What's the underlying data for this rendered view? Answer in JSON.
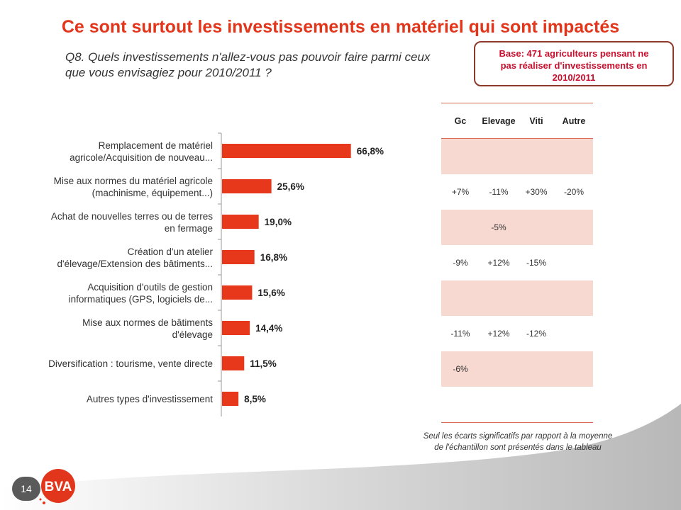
{
  "title": "Ce sont surtout les investissements en matériel qui sont impactés",
  "question": "Q8. Quels investissements n'allez-vous pas pouvoir faire parmi ceux que vous envisagiez pour 2010/2011 ?",
  "base_box": {
    "line1": "Base: 471 agriculteurs pensant ne",
    "line2": "pas réaliser d'investissements en",
    "line3": "2010/2011"
  },
  "colors": {
    "accent": "#e2361c",
    "bar": "#e8381b",
    "shade": "#f7d9d1",
    "border": "#8b3a2b"
  },
  "chart_data": {
    "type": "bar",
    "orientation": "horizontal",
    "categories": [
      [
        "Remplacement de matériel",
        "agricole/Acquisition de nouveau..."
      ],
      [
        "Mise aux normes du matériel agricole",
        "(machinisme, équipement...)"
      ],
      [
        "Achat de nouvelles terres ou de terres",
        "en fermage"
      ],
      [
        "Création d'un atelier",
        "d'élevage/Extension des bâtiments..."
      ],
      [
        "Acquisition d'outils de gestion",
        "informatiques (GPS, logiciels de..."
      ],
      [
        "Mise aux normes de bâtiments",
        "d'élevage"
      ],
      [
        "Diversification : tourisme, vente directe"
      ],
      [
        "Autres types d'investissement"
      ]
    ],
    "values": [
      66.8,
      25.6,
      19.0,
      16.8,
      15.6,
      14.4,
      11.5,
      8.5
    ],
    "value_labels": [
      "66,8%",
      "25,6%",
      "19,0%",
      "16,8%",
      "15,6%",
      "14,4%",
      "11,5%",
      "8,5%"
    ],
    "xlim": [
      0,
      100
    ]
  },
  "table": {
    "headers": [
      "Gc",
      "Elevage",
      "Viti",
      "Autre"
    ],
    "rows": [
      [
        "",
        "",
        "",
        ""
      ],
      [
        "+7%",
        "-11%",
        "+30%",
        "-20%"
      ],
      [
        "",
        "-5%",
        "",
        ""
      ],
      [
        "-9%",
        "+12%",
        "-15%",
        ""
      ],
      [
        "",
        "",
        "",
        ""
      ],
      [
        "-11%",
        "+12%",
        "-12%",
        ""
      ],
      [
        "-6%",
        "",
        "",
        ""
      ],
      [
        "",
        "",
        "",
        ""
      ]
    ]
  },
  "footnote": {
    "line1": "Seul les écarts significatifs par rapport à la moyenne",
    "line2": "de l'échantillon sont présentés dans le tableau"
  },
  "page_number": "14",
  "logo_text": "BVA"
}
